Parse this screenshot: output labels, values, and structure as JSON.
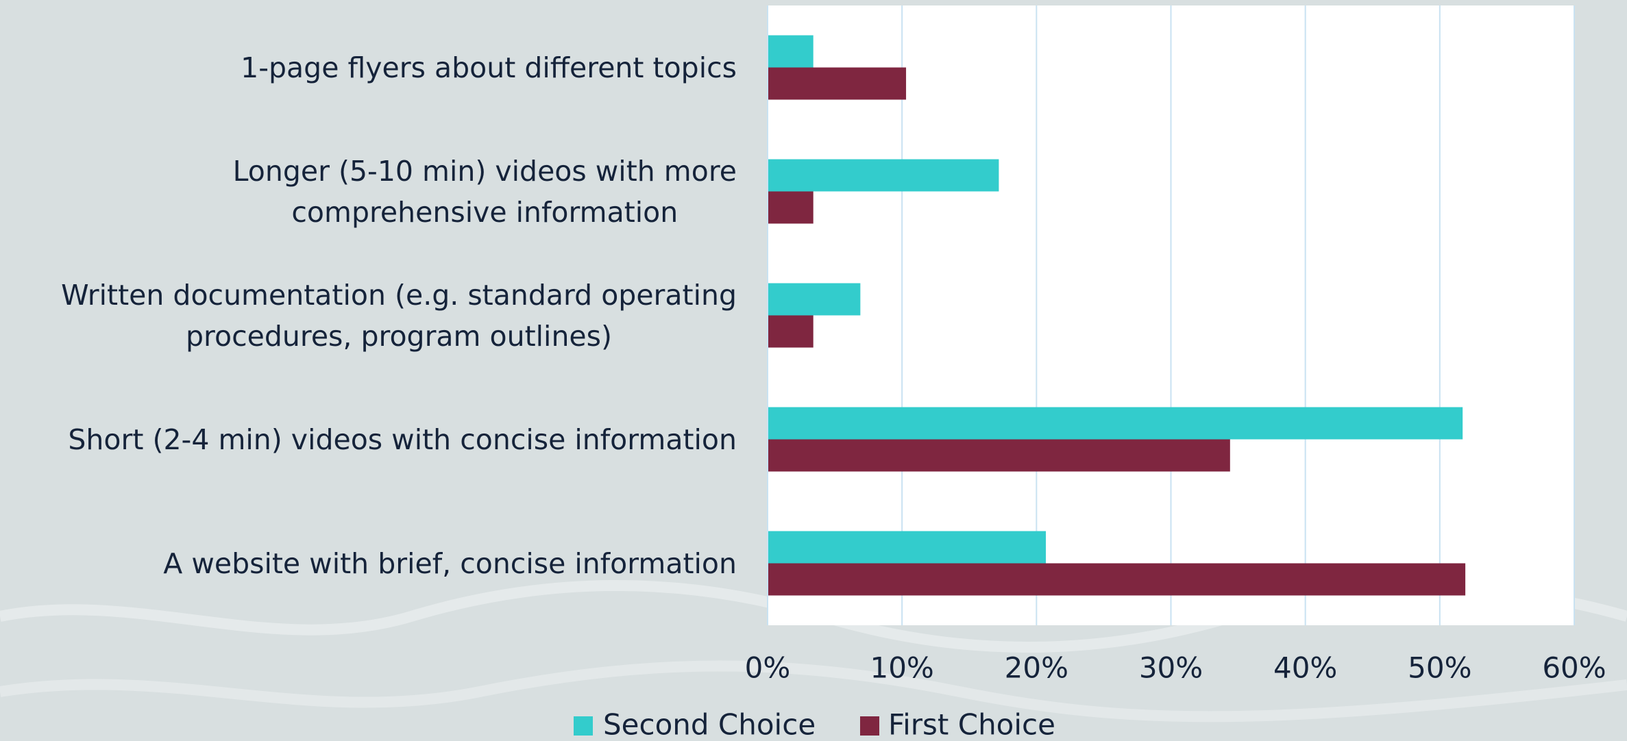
{
  "chart_data": {
    "type": "barh",
    "categories": [
      "1-page flyers about different topics",
      "Longer (5-10 min) videos with more\ncomprehensive information",
      "Written documentation (e.g. standard operating\nprocedures, program outlines)",
      "Short (2-4 min) videos with concise information",
      "A website with brief, concise information"
    ],
    "series": [
      {
        "name": "Second Choice",
        "color": "#33cccc",
        "values": [
          3.4,
          17.2,
          6.9,
          51.7,
          20.7
        ]
      },
      {
        "name": "First Choice",
        "color": "#7f2640",
        "values": [
          10.3,
          3.4,
          3.4,
          34.4,
          51.9
        ]
      }
    ],
    "xlim": [
      0,
      60
    ],
    "xticks": [
      {
        "value": 0,
        "label": "0%"
      },
      {
        "value": 10,
        "label": "10%"
      },
      {
        "value": 20,
        "label": "20%"
      },
      {
        "value": 30,
        "label": "30%"
      },
      {
        "value": 40,
        "label": "40%"
      },
      {
        "value": 50,
        "label": "50%"
      },
      {
        "value": 60,
        "label": "60%"
      }
    ],
    "grid": true,
    "legend": "bottom"
  }
}
